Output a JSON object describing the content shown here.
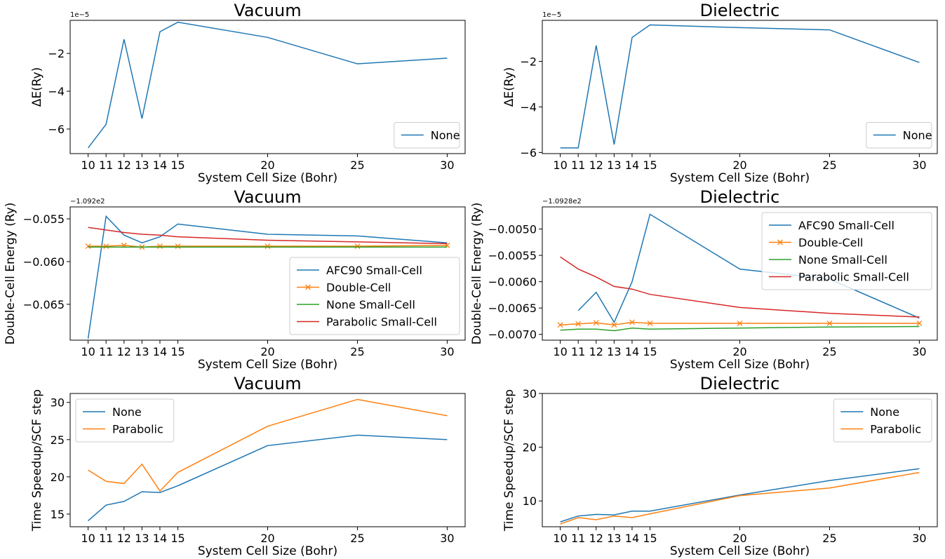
{
  "chart_data": [
    {
      "type": "line",
      "title": "Vacuum",
      "xlabel": "System Cell Size (Bohr)",
      "ylabel": "ΔE(Ry)",
      "y_offset_text": "1e−5",
      "x_ticks": [
        10,
        11,
        12,
        13,
        14,
        15,
        20,
        25,
        30
      ],
      "y_ticks": [
        -6,
        -4,
        -2
      ],
      "xlim": [
        9.0,
        31.0
      ],
      "ylim": [
        -7.3,
        -0.25
      ],
      "legend": "lower right",
      "series": [
        {
          "name": "None",
          "color": "#1f77b4",
          "marker": "",
          "x": [
            10,
            11,
            12,
            13,
            14,
            15,
            20,
            25,
            30
          ],
          "y": [
            -7.0,
            -5.75,
            -1.25,
            -5.45,
            -0.85,
            -0.35,
            -1.15,
            -2.55,
            -2.25
          ]
        }
      ]
    },
    {
      "type": "line",
      "title": "Dielectric",
      "xlabel": "System Cell Size (Bohr)",
      "ylabel": "ΔE(Ry)",
      "y_offset_text": "1e−5",
      "x_ticks": [
        10,
        11,
        12,
        13,
        14,
        15,
        20,
        25,
        30
      ],
      "y_ticks": [
        -6,
        -4,
        -2
      ],
      "xlim": [
        9.0,
        31.0
      ],
      "ylim": [
        -6.05,
        -0.2
      ],
      "legend": "lower right",
      "series": [
        {
          "name": "None",
          "color": "#1f77b4",
          "marker": "",
          "x": [
            10,
            11,
            12,
            13,
            14,
            15,
            20,
            25,
            30
          ],
          "y": [
            -5.8,
            -5.8,
            -1.3,
            -5.65,
            -0.95,
            -0.4,
            -0.52,
            -0.62,
            -2.05
          ]
        }
      ]
    },
    {
      "type": "line",
      "title": "Vacuum",
      "xlabel": "System Cell Size (Bohr)",
      "ylabel": "Double-Cell Energy (Ry)",
      "y_offset_text": "−1.092e2",
      "x_ticks": [
        10,
        11,
        12,
        13,
        14,
        15,
        20,
        25,
        30
      ],
      "y_ticks": [
        -0.065,
        -0.06,
        -0.055
      ],
      "y_tick_labels": [
        "−0.065",
        "−0.060",
        "−0.055"
      ],
      "xlim": [
        9.0,
        31.0
      ],
      "ylim": [
        -0.0692,
        -0.0536
      ],
      "legend": "lower right",
      "series": [
        {
          "name": "AFC90 Small-Cell",
          "color": "#1f77b4",
          "marker": "",
          "x": [
            10,
            11,
            12,
            13,
            14,
            15,
            20,
            25,
            30
          ],
          "y": [
            -0.069,
            -0.0547,
            -0.0569,
            -0.0578,
            -0.0571,
            -0.0556,
            -0.0568,
            -0.057,
            -0.0578
          ]
        },
        {
          "name": "Double-Cell",
          "color": "#ff7f0e",
          "marker": "x",
          "x": [
            10,
            11,
            12,
            13,
            14,
            15,
            20,
            25,
            30
          ],
          "y": [
            -0.0582,
            -0.0582,
            -0.0581,
            -0.0583,
            -0.0582,
            -0.0582,
            -0.0582,
            -0.0582,
            -0.0581
          ]
        },
        {
          "name": "None Small-Cell",
          "color": "#2ca02c",
          "marker": "",
          "x": [
            10,
            11,
            12,
            13,
            14,
            15,
            20,
            25,
            30
          ],
          "y": [
            -0.0583,
            -0.0583,
            -0.0583,
            -0.0583,
            -0.0583,
            -0.0583,
            -0.0583,
            -0.0583,
            -0.0583
          ]
        },
        {
          "name": "Parabolic Small-Cell",
          "color": "#d62728",
          "marker": "",
          "x": [
            10,
            11,
            12,
            13,
            14,
            15,
            20,
            25,
            30
          ],
          "y": [
            -0.056,
            -0.0563,
            -0.0566,
            -0.0568,
            -0.0569,
            -0.0571,
            -0.0575,
            -0.0577,
            -0.0579
          ]
        }
      ]
    },
    {
      "type": "line",
      "title": "Dielectric",
      "xlabel": "System Cell Size (Bohr)",
      "ylabel": "Double-Cell Energy (Ry)",
      "y_offset_text": "−1.0928e2",
      "x_ticks": [
        10,
        11,
        12,
        13,
        14,
        15,
        20,
        25,
        30
      ],
      "y_ticks": [
        -0.007,
        -0.0065,
        -0.006,
        -0.0055,
        -0.005
      ],
      "y_tick_labels": [
        "−0.0070",
        "−0.0065",
        "−0.0060",
        "−0.0055",
        "−0.0050"
      ],
      "xlim": [
        9.0,
        31.0
      ],
      "ylim": [
        -0.00711,
        -0.00458
      ],
      "legend": "upper right",
      "series": [
        {
          "name": "AFC90 Small-Cell",
          "color": "#1f77b4",
          "marker": "",
          "x": [
            11,
            12,
            13,
            14,
            15,
            20,
            25,
            30
          ],
          "y": [
            -0.00655,
            -0.0062,
            -0.00677,
            -0.006,
            -0.00472,
            -0.00576,
            -0.00595,
            -0.00669
          ]
        },
        {
          "name": "Double-Cell",
          "color": "#ff7f0e",
          "marker": "x",
          "x": [
            10,
            11,
            12,
            13,
            14,
            15,
            20,
            25,
            30
          ],
          "y": [
            -0.00682,
            -0.0068,
            -0.00678,
            -0.00682,
            -0.00677,
            -0.00679,
            -0.00679,
            -0.00679,
            -0.00679
          ]
        },
        {
          "name": "None Small-Cell",
          "color": "#2ca02c",
          "marker": "",
          "x": [
            10,
            11,
            12,
            13,
            14,
            15,
            20,
            25,
            30
          ],
          "y": [
            -0.00692,
            -0.0069,
            -0.0069,
            -0.00693,
            -0.00688,
            -0.0069,
            -0.00688,
            -0.00686,
            -0.00685
          ]
        },
        {
          "name": "Parabolic Small-Cell",
          "color": "#d62728",
          "marker": "",
          "x": [
            10,
            11,
            12,
            13,
            14,
            15,
            20,
            25,
            30
          ],
          "y": [
            -0.00553,
            -0.00576,
            -0.00591,
            -0.00609,
            -0.00614,
            -0.00624,
            -0.00649,
            -0.0066,
            -0.00667
          ]
        }
      ]
    },
    {
      "type": "line",
      "title": "Vacuum",
      "xlabel": "System Cell Size (Bohr)",
      "ylabel": "Time Speedup/SCF step",
      "y_offset_text": "",
      "x_ticks": [
        10,
        11,
        12,
        13,
        14,
        15,
        20,
        25,
        30
      ],
      "y_ticks": [
        15,
        20,
        25,
        30
      ],
      "xlim": [
        9.0,
        31.0
      ],
      "ylim": [
        13.3,
        31.2
      ],
      "legend": "upper left",
      "series": [
        {
          "name": "None",
          "color": "#1f77b4",
          "marker": "",
          "x": [
            10,
            11,
            12,
            13,
            14,
            15,
            20,
            25,
            30
          ],
          "y": [
            14.1,
            16.2,
            16.7,
            18.0,
            17.9,
            18.8,
            24.2,
            25.6,
            25.0
          ]
        },
        {
          "name": "Parabolic",
          "color": "#ff7f0e",
          "marker": "",
          "x": [
            10,
            11,
            12,
            13,
            14,
            15,
            20,
            25,
            30
          ],
          "y": [
            20.9,
            19.4,
            19.1,
            21.7,
            18.1,
            20.6,
            26.8,
            30.4,
            28.2
          ]
        }
      ]
    },
    {
      "type": "line",
      "title": "Dielectric",
      "xlabel": "System Cell Size (Bohr)",
      "ylabel": "Time Speedup/SCF step",
      "y_offset_text": "",
      "x_ticks": [
        10,
        11,
        12,
        13,
        14,
        15,
        20,
        25,
        30
      ],
      "y_ticks": [
        10,
        20,
        30
      ],
      "xlim": [
        9.0,
        31.0
      ],
      "ylim": [
        5.2,
        30.0
      ],
      "legend": "upper right",
      "series": [
        {
          "name": "None",
          "color": "#1f77b4",
          "marker": "",
          "x": [
            10,
            11,
            12,
            13,
            14,
            15,
            20,
            25,
            30
          ],
          "y": [
            6.1,
            7.2,
            7.5,
            7.4,
            8.1,
            8.1,
            11.1,
            13.8,
            16.0
          ]
        },
        {
          "name": "Parabolic",
          "color": "#ff7f0e",
          "marker": "",
          "x": [
            10,
            11,
            12,
            13,
            14,
            15,
            20,
            25,
            30
          ],
          "y": [
            5.7,
            6.9,
            6.5,
            7.2,
            6.9,
            7.6,
            11.0,
            12.4,
            15.3
          ]
        }
      ]
    }
  ]
}
